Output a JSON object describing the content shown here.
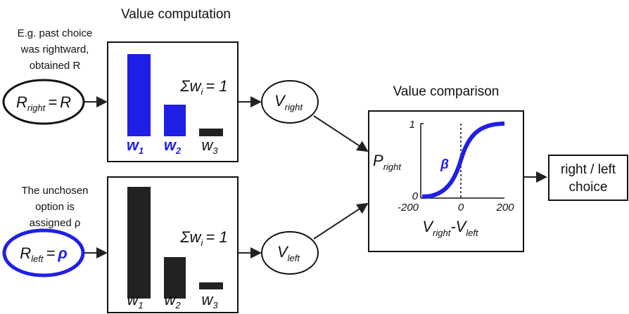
{
  "top_panel": {
    "title": "Value computation",
    "note": [
      "E.g. past choice",
      "was rightward,",
      "obtained R"
    ],
    "input": {
      "symbol": "R",
      "subscript": "right",
      "equals": "=",
      "rhs": "R"
    },
    "weights": [
      {
        "symbol": "w",
        "subscript": "1"
      },
      {
        "symbol": "w",
        "subscript": "2"
      },
      {
        "symbol": "w",
        "subscript": "3"
      }
    ],
    "constraint": {
      "symbol": "Σw",
      "subscript": "i",
      "rhs": "= 1"
    },
    "output": {
      "symbol": "V",
      "subscript": "right"
    }
  },
  "bottom_panel": {
    "note": [
      "The unchosen",
      "option is",
      "assigned ρ"
    ],
    "input": {
      "symbol": "R",
      "subscript": "left",
      "equals": "=",
      "rhs": "ρ"
    },
    "weights": [
      {
        "symbol": "w",
        "subscript": "1"
      },
      {
        "symbol": "w",
        "subscript": "2"
      },
      {
        "symbol": "w",
        "subscript": "3"
      }
    ],
    "constraint": {
      "symbol": "Σw",
      "subscript": "i",
      "rhs": "= 1"
    },
    "output": {
      "symbol": "V",
      "subscript": "left"
    }
  },
  "comparison": {
    "title": "Value comparison",
    "y_label": {
      "symbol": "P",
      "subscript": "right"
    },
    "y_ticks": [
      "1",
      "0"
    ],
    "x_ticks": [
      "-200",
      "0",
      "200"
    ],
    "x_label": {
      "first": "V",
      "first_subscript": "right",
      "second": "-V",
      "second_subscript": "left"
    },
    "slope": "β"
  },
  "choice": [
    "right / left",
    "choice"
  ]
}
